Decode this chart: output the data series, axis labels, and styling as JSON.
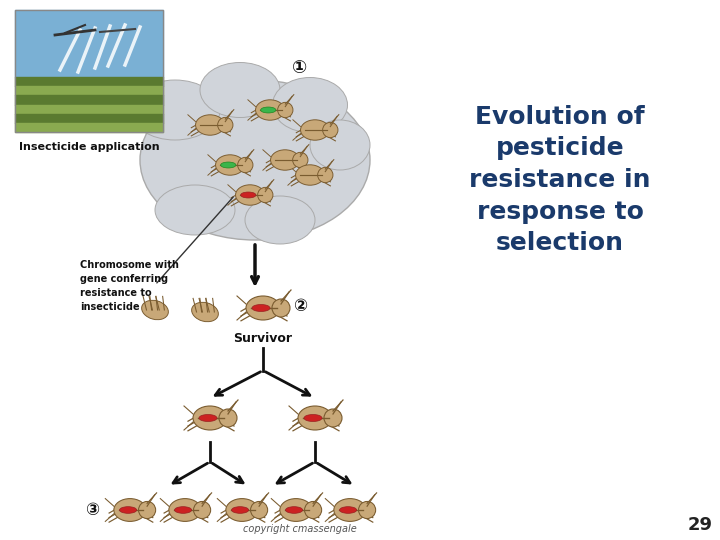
{
  "background_color": "#ffffff",
  "title_lines": [
    "Evolution of",
    "pesticide",
    "resistance in",
    "response to",
    "selection"
  ],
  "title_color": "#1a3a6b",
  "title_fontsize": 18,
  "copyright_text": "copyright cmassengale",
  "page_number": "29",
  "label_insecticide": "Insecticide application",
  "label_chromosome": "Chromosome with\ngene conferring\nresistance to\ninsecticide",
  "label_survivor": "Survivor",
  "step1_circle_color": "#d0d4da",
  "step1_number": "①",
  "step2_number": "②",
  "step3_number": "③",
  "arrow_color": "#111111",
  "bug_body_color": "#c8a878",
  "bug_outline_color": "#7a5c30",
  "bug_leg_color": "#7a5c30",
  "font_color_label": "#111111"
}
